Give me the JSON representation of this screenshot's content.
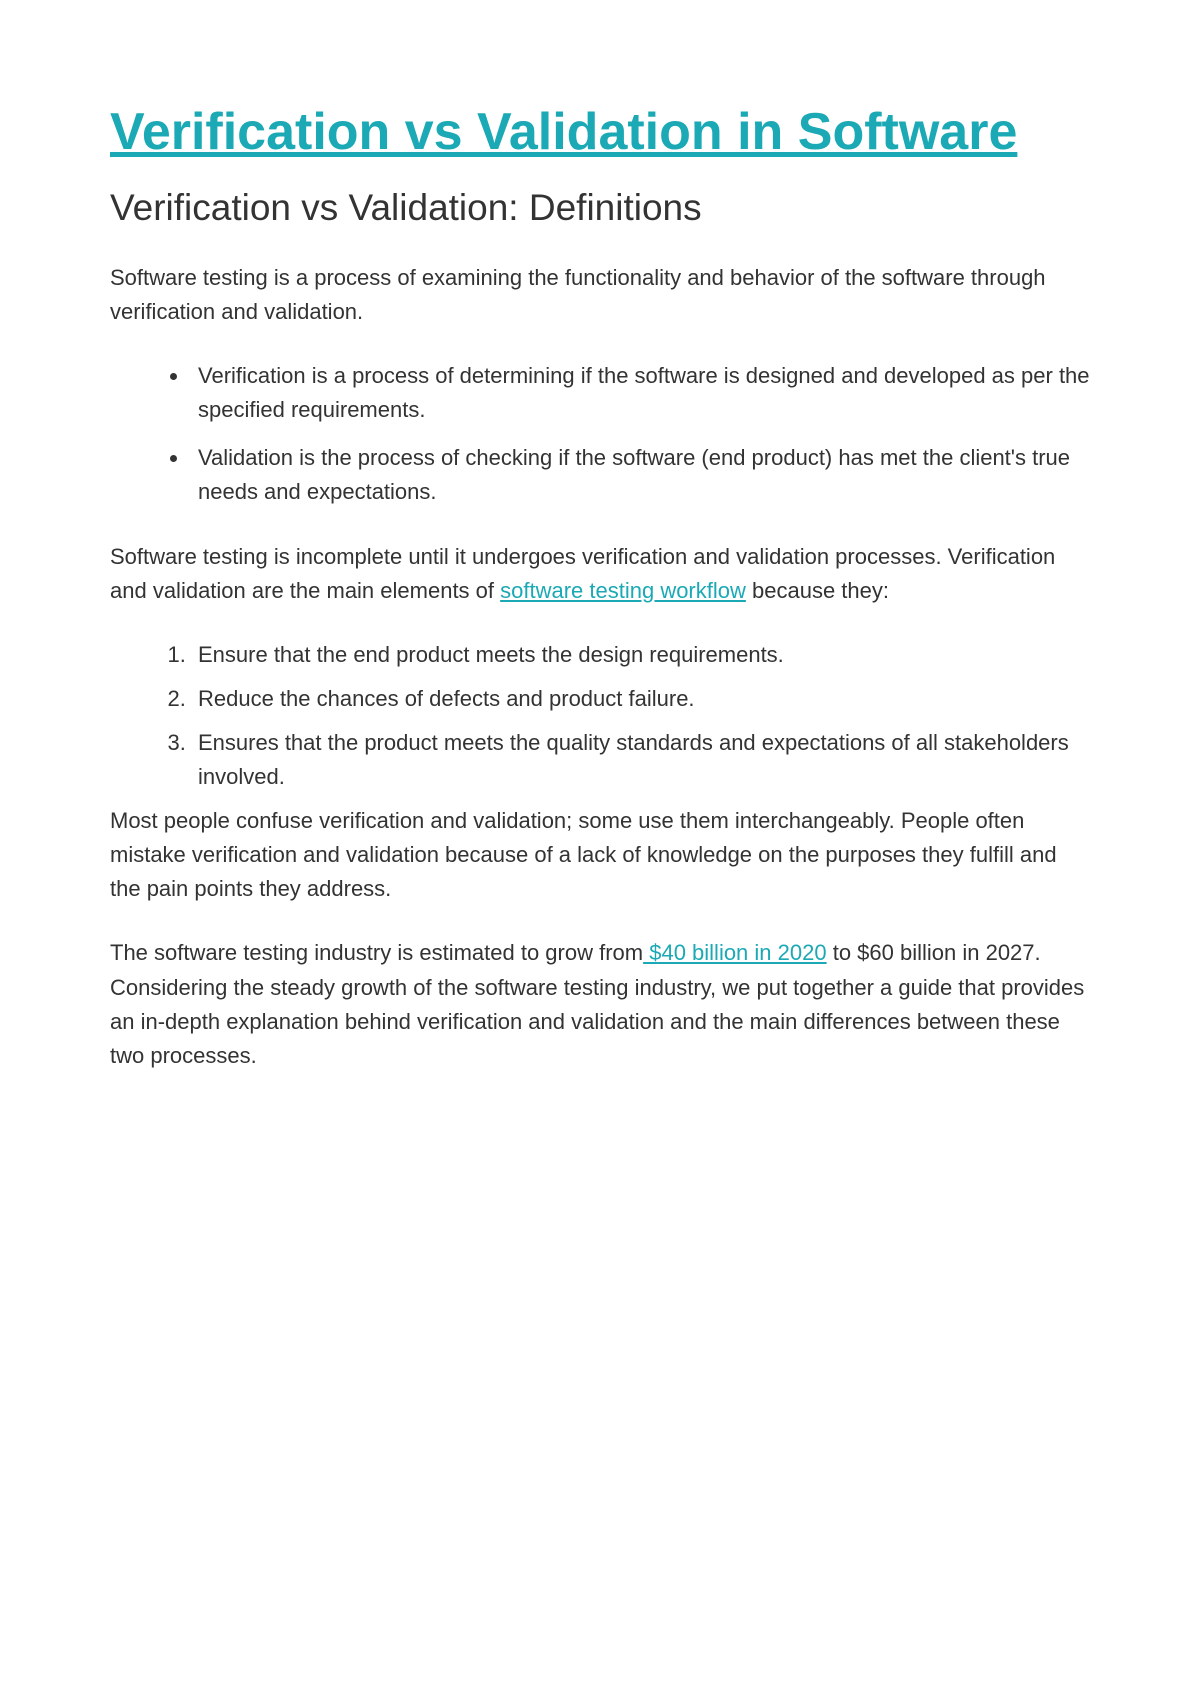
{
  "title": "Verification vs Validation in Software",
  "subtitle": "Verification vs Validation: Definitions",
  "intro": "Software testing is a process of examining the functionality and behavior of the software through verification and validation.",
  "bullets": [
    "Verification is a process of determining if the software is designed and developed as per the specified requirements.",
    "Validation is the process of checking if the software (end product) has met the client's true needs and expectations."
  ],
  "mid_text_before_link": "Software testing is incomplete until it undergoes verification and validation processes. Verification and validation are the main elements of ",
  "mid_link": "software testing workflow",
  "mid_text_after_link": " because they:",
  "reasons": [
    "Ensure that the end product meets the design requirements.",
    "Reduce the chances of defects and product failure.",
    "Ensures that the product meets the quality standards and expectations of all stakeholders involved."
  ],
  "confuse_text": "Most people confuse verification and validation; some use them interchangeably. People often mistake verification and validation because of a lack of knowledge on the purposes they fulfill and the pain points they address.",
  "final_before_link": "The software testing industry is estimated to grow from",
  "final_link": " $40 billion in 2020",
  "final_after_link": " to $60 billion in 2027. Considering the steady growth of the software testing industry, we put together a guide that provides an in-depth explanation behind verification and validation and the main differences between these two processes.",
  "colors": {
    "title_color": "#1ba9b5",
    "text_color": "#333333",
    "link_color": "#1ba9b5",
    "background": "#ffffff"
  },
  "typography": {
    "title_fontsize": 52,
    "subtitle_fontsize": 37,
    "body_fontsize": 22
  }
}
